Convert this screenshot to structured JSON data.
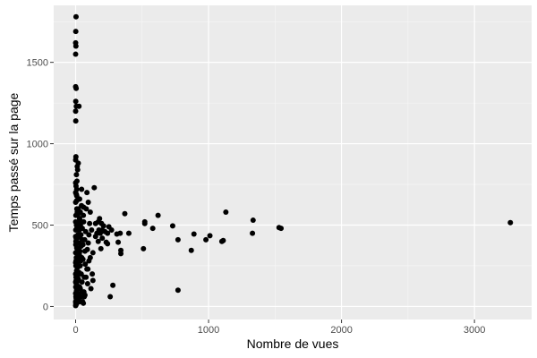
{
  "chart_data": {
    "type": "scatter",
    "title": "",
    "xlabel": "Nombre de vues",
    "ylabel": "Temps passé sur la page",
    "xlim": [
      -165,
      3430
    ],
    "ylim": [
      -80,
      1850
    ],
    "x_ticks": [
      0,
      1000,
      2000,
      3000
    ],
    "x_minor_ticks": [
      500,
      1500,
      2500
    ],
    "y_ticks": [
      0,
      500,
      1000,
      1500
    ],
    "y_minor_ticks": [
      250,
      750,
      1250,
      1750
    ],
    "x_tick_labels": [
      "0",
      "1000",
      "2000",
      "3000"
    ],
    "y_tick_labels": [
      "0",
      "500",
      "1000",
      "1500"
    ],
    "grid": true,
    "legend": "none",
    "colors": {
      "panel": "#ebebeb",
      "grid_major": "#ffffff",
      "grid_minor": "#f7f7f7",
      "point": "#000000",
      "tick": "#333333"
    },
    "points": [
      [
        3270,
        515
      ],
      [
        1545,
        480
      ],
      [
        1530,
        485
      ],
      [
        1335,
        530
      ],
      [
        1330,
        450
      ],
      [
        1130,
        580
      ],
      [
        1110,
        405
      ],
      [
        1100,
        400
      ],
      [
        1010,
        435
      ],
      [
        980,
        410
      ],
      [
        890,
        445
      ],
      [
        870,
        345
      ],
      [
        770,
        410
      ],
      [
        770,
        100
      ],
      [
        730,
        495
      ],
      [
        620,
        560
      ],
      [
        580,
        480
      ],
      [
        520,
        520
      ],
      [
        520,
        510
      ],
      [
        510,
        355
      ],
      [
        400,
        450
      ],
      [
        370,
        570
      ],
      [
        340,
        325
      ],
      [
        340,
        345
      ],
      [
        335,
        450
      ],
      [
        320,
        395
      ],
      [
        310,
        445
      ],
      [
        280,
        130
      ],
      [
        270,
        470
      ],
      [
        260,
        60
      ],
      [
        250,
        490
      ],
      [
        240,
        385
      ],
      [
        230,
        395
      ],
      [
        220,
        460
      ],
      [
        210,
        495
      ],
      [
        200,
        420
      ],
      [
        195,
        510
      ],
      [
        190,
        355
      ],
      [
        185,
        450
      ],
      [
        180,
        540
      ],
      [
        175,
        470
      ],
      [
        170,
        400
      ],
      [
        160,
        450
      ],
      [
        150,
        430
      ],
      [
        140,
        730
      ],
      [
        130,
        160
      ],
      [
        125,
        200
      ],
      [
        120,
        470
      ],
      [
        115,
        110
      ],
      [
        110,
        580
      ],
      [
        105,
        510
      ],
      [
        100,
        440
      ],
      [
        95,
        640
      ],
      [
        92,
        230
      ],
      [
        88,
        350
      ],
      [
        85,
        700
      ],
      [
        80,
        600
      ],
      [
        75,
        460
      ],
      [
        72,
        260
      ],
      [
        70,
        340
      ],
      [
        68,
        410
      ],
      [
        65,
        180
      ],
      [
        62,
        90
      ],
      [
        60,
        520
      ],
      [
        58,
        560
      ],
      [
        55,
        380
      ],
      [
        52,
        30
      ],
      [
        50,
        480
      ],
      [
        48,
        150
      ],
      [
        46,
        300
      ],
      [
        44,
        620
      ],
      [
        42,
        200
      ],
      [
        40,
        440
      ],
      [
        38,
        60
      ],
      [
        36,
        500
      ],
      [
        34,
        250
      ],
      [
        32,
        340
      ],
      [
        30,
        120
      ],
      [
        28,
        470
      ],
      [
        26,
        390
      ],
      [
        25,
        1230
      ],
      [
        24,
        210
      ],
      [
        22,
        520
      ],
      [
        20,
        170
      ],
      [
        19,
        300
      ],
      [
        18,
        80
      ],
      [
        17,
        440
      ],
      [
        16,
        560
      ],
      [
        15,
        40
      ],
      [
        14,
        350
      ],
      [
        13,
        190
      ],
      [
        12,
        860
      ],
      [
        12,
        420
      ],
      [
        11,
        130
      ],
      [
        10,
        480
      ],
      [
        10,
        260
      ],
      [
        9,
        20
      ],
      [
        9,
        600
      ],
      [
        8,
        680
      ],
      [
        8,
        360
      ],
      [
        7,
        220
      ],
      [
        7,
        100
      ],
      [
        6,
        500
      ],
      [
        6,
        810
      ],
      [
        5,
        140
      ],
      [
        5,
        300
      ],
      [
        5,
        1230
      ],
      [
        4,
        50
      ],
      [
        4,
        420
      ],
      [
        4,
        1340
      ],
      [
        3,
        180
      ],
      [
        3,
        740
      ],
      [
        3,
        10
      ],
      [
        3,
        1780
      ],
      [
        2,
        560
      ],
      [
        2,
        250
      ],
      [
        2,
        1600
      ],
      [
        2,
        60
      ],
      [
        2,
        920
      ],
      [
        1,
        380
      ],
      [
        1,
        1140
      ],
      [
        1,
        120
      ],
      [
        1,
        1690
      ],
      [
        1,
        470
      ],
      [
        1,
        1260
      ],
      [
        0,
        30
      ],
      [
        0,
        200
      ],
      [
        0,
        330
      ],
      [
        0,
        640
      ],
      [
        0,
        900
      ],
      [
        0,
        1550
      ],
      [
        0,
        1620
      ],
      [
        0,
        1350
      ],
      [
        0,
        1200
      ],
      [
        0,
        760
      ],
      [
        0,
        520
      ],
      [
        0,
        80
      ],
      [
        0,
        5
      ],
      [
        20,
        880
      ],
      [
        15,
        840
      ],
      [
        30,
        660
      ],
      [
        45,
        720
      ],
      [
        60,
        610
      ],
      [
        10,
        770
      ],
      [
        5,
        690
      ],
      [
        35,
        580
      ],
      [
        25,
        430
      ],
      [
        40,
        370
      ],
      [
        55,
        290
      ],
      [
        15,
        240
      ],
      [
        35,
        110
      ],
      [
        65,
        60
      ],
      [
        85,
        230
      ],
      [
        100,
        280
      ],
      [
        110,
        300
      ],
      [
        90,
        140
      ],
      [
        70,
        70
      ],
      [
        50,
        410
      ],
      [
        30,
        540
      ],
      [
        20,
        600
      ],
      [
        8,
        650
      ],
      [
        12,
        580
      ],
      [
        18,
        500
      ],
      [
        28,
        320
      ],
      [
        38,
        280
      ],
      [
        48,
        90
      ],
      [
        58,
        20
      ],
      [
        78,
        180
      ],
      [
        95,
        390
      ],
      [
        130,
        330
      ],
      [
        150,
        510
      ],
      [
        170,
        520
      ],
      [
        200,
        470
      ],
      [
        240,
        450
      ],
      [
        8,
        720
      ],
      [
        12,
        110
      ],
      [
        22,
        160
      ],
      [
        32,
        30
      ],
      [
        42,
        520
      ],
      [
        6,
        90
      ],
      [
        4,
        160
      ],
      [
        3,
        280
      ],
      [
        2,
        400
      ],
      [
        1,
        20
      ],
      [
        0,
        270
      ],
      [
        0,
        150
      ],
      [
        0,
        430
      ],
      [
        0,
        700
      ]
    ]
  }
}
